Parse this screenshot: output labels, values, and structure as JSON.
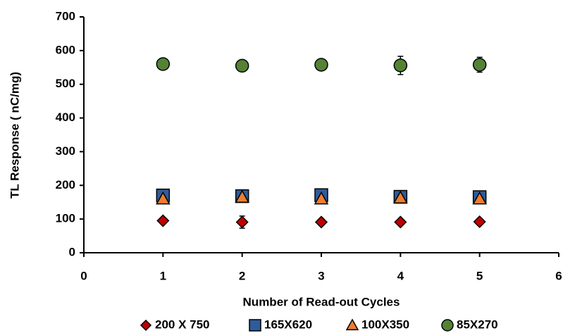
{
  "chart_data": {
    "type": "scatter",
    "x_label": "Number of Read-out Cycles",
    "y_label": "TL Response ( nC/mg)",
    "x": [
      1,
      2,
      3,
      4,
      5
    ],
    "xlim": [
      0,
      6
    ],
    "xticks": [
      0,
      1,
      2,
      3,
      4,
      5,
      6
    ],
    "ylim": [
      0,
      700
    ],
    "yticks": [
      0,
      100,
      200,
      300,
      400,
      500,
      600,
      700
    ],
    "grid": false,
    "legend": "bottom",
    "series": [
      {
        "name": "200 X 750",
        "color": "#c00000",
        "marker": "diamond",
        "values": [
          95,
          91,
          91,
          91,
          92
        ],
        "error": [
          5,
          18,
          10,
          5,
          5
        ]
      },
      {
        "name": "165X620",
        "color": "#2e5c9a",
        "marker": "square",
        "values": [
          170,
          168,
          171,
          166,
          165
        ],
        "error": [
          8,
          8,
          8,
          12,
          14
        ]
      },
      {
        "name": "100X350",
        "color": "#ed7d31",
        "marker": "triangle",
        "values": [
          160,
          165,
          160,
          163,
          160
        ],
        "error": [
          6,
          6,
          6,
          6,
          6
        ]
      },
      {
        "name": "85X270",
        "color": "#548235",
        "marker": "circle",
        "values": [
          560,
          555,
          558,
          556,
          558
        ],
        "error": [
          8,
          8,
          8,
          27,
          22
        ]
      }
    ]
  }
}
